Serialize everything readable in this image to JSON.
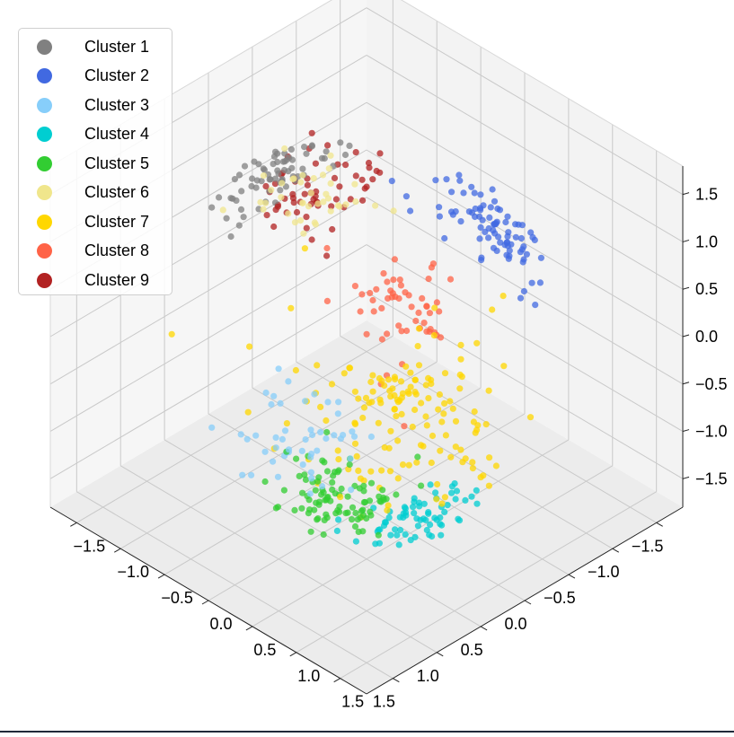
{
  "chart_data": {
    "type": "scatter",
    "dimensions": 3,
    "title": "",
    "xlabel": "",
    "ylabel": "",
    "zlabel": "",
    "xlim": [
      -1.8,
      1.8
    ],
    "ylim": [
      -1.8,
      1.8
    ],
    "zlim": [
      -1.8,
      1.8
    ],
    "x_ticks": [
      "1.5",
      "1.0",
      "0.5",
      "0.0",
      "−0.5",
      "−1.0",
      "−1.5"
    ],
    "y_ticks": [
      "−1.5",
      "−1.0",
      "−0.5",
      "0.0",
      "0.5",
      "1.0",
      "1.5"
    ],
    "z_ticks": [
      "1.5",
      "1.0",
      "0.5",
      "0.0",
      "−0.5",
      "−1.0",
      "−1.5"
    ],
    "grid": true,
    "legend_position": "top-left",
    "series": [
      {
        "name": "Cluster 1",
        "color": "#808080",
        "center": [
          -0.2,
          -1.3,
          0.9
        ],
        "count": 70
      },
      {
        "name": "Cluster 2",
        "color": "#4169e1",
        "center": [
          -0.9,
          0.6,
          1.0
        ],
        "count": 85
      },
      {
        "name": "Cluster 3",
        "color": "#87cefa",
        "center": [
          1.5,
          0.7,
          0.1
        ],
        "count": 50
      },
      {
        "name": "Cluster 4",
        "color": "#00ced1",
        "center": [
          0.3,
          0.9,
          -1.3
        ],
        "count": 70
      },
      {
        "name": "Cluster 5",
        "color": "#32cd32",
        "center": [
          1.2,
          0.9,
          -0.6
        ],
        "count": 95
      },
      {
        "name": "Cluster 6",
        "color": "#f0e68c",
        "center": [
          0.4,
          -0.2,
          1.6
        ],
        "count": 40
      },
      {
        "name": "Cluster 7",
        "color": "#ffd700",
        "center": [
          0.1,
          0.4,
          -0.3
        ],
        "count": 150
      },
      {
        "name": "Cluster 8",
        "color": "#ff6347",
        "center": [
          -0.7,
          -0.3,
          -0.2
        ],
        "count": 55
      },
      {
        "name": "Cluster 9",
        "color": "#b22222",
        "center": [
          -0.9,
          -1.5,
          0.2
        ],
        "count": 60
      }
    ]
  }
}
